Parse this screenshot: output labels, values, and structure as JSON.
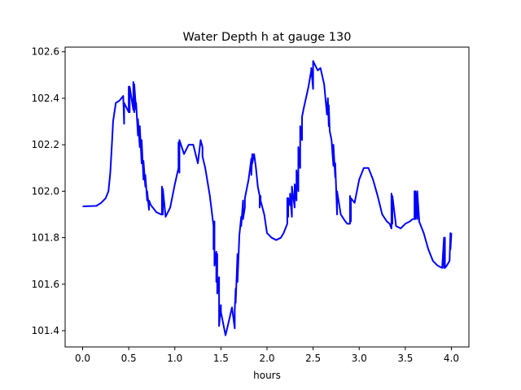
{
  "chart_data": {
    "type": "line",
    "title": "Water Depth h at gauge 130",
    "xlabel": "hours",
    "ylabel": "",
    "xlim": [
      -0.19,
      4.19
    ],
    "ylim": [
      101.33,
      102.62
    ],
    "xticks": [
      0.0,
      0.5,
      1.0,
      1.5,
      2.0,
      2.5,
      3.0,
      3.5,
      4.0
    ],
    "xtick_labels": [
      "0.0",
      "0.5",
      "1.0",
      "1.5",
      "2.0",
      "2.5",
      "3.0",
      "3.5",
      "4.0"
    ],
    "yticks": [
      101.4,
      101.6,
      101.8,
      102.0,
      102.2,
      102.4,
      102.6
    ],
    "ytick_labels": [
      "101.4",
      "101.6",
      "101.8",
      "102.0",
      "102.2",
      "102.4",
      "102.6"
    ],
    "grid": false,
    "series": [
      {
        "color": "#0000ff",
        "x": [
          0.0,
          0.15,
          0.2,
          0.25,
          0.28,
          0.3,
          0.32,
          0.33,
          0.36,
          0.4,
          0.44,
          0.45,
          0.45,
          0.5,
          0.5,
          0.51,
          0.51,
          0.55,
          0.55,
          0.56,
          0.56,
          0.58,
          0.58,
          0.6,
          0.6,
          0.62,
          0.62,
          0.64,
          0.64,
          0.66,
          0.66,
          0.68,
          0.68,
          0.7,
          0.7,
          0.72,
          0.72,
          0.74,
          0.8,
          0.85,
          0.86,
          0.86,
          0.87,
          0.87,
          0.9,
          0.95,
          1.0,
          1.04,
          1.04,
          1.05,
          1.05,
          1.1,
          1.15,
          1.2,
          1.25,
          1.28,
          1.3,
          1.3,
          1.33,
          1.38,
          1.42,
          1.42,
          1.43,
          1.43,
          1.45,
          1.45,
          1.46,
          1.46,
          1.48,
          1.48,
          1.5,
          1.5,
          1.55,
          1.58,
          1.62,
          1.65,
          1.65,
          1.66,
          1.66,
          1.68,
          1.68,
          1.7,
          1.72,
          1.72,
          1.74,
          1.74,
          1.76,
          1.76,
          1.8,
          1.83,
          1.83,
          1.84,
          1.84,
          1.86,
          1.88,
          1.9,
          1.92,
          1.92,
          1.93,
          1.93,
          1.97,
          2.0,
          2.05,
          2.1,
          2.15,
          2.18,
          2.22,
          2.22,
          2.23,
          2.23,
          2.25,
          2.25,
          2.27,
          2.27,
          2.3,
          2.3,
          2.32,
          2.32,
          2.34,
          2.34,
          2.36,
          2.36,
          2.38,
          2.38,
          2.4,
          2.45,
          2.48,
          2.48,
          2.5,
          2.5,
          2.55,
          2.58,
          2.62,
          2.65,
          2.66,
          2.67,
          2.67,
          2.68,
          2.7,
          2.7,
          2.72,
          2.72,
          2.74,
          2.74,
          2.76,
          2.76,
          2.8,
          2.85,
          2.87,
          2.9,
          2.9,
          2.91,
          2.91,
          2.95,
          3.0,
          3.05,
          3.1,
          3.15,
          3.2,
          3.25,
          3.3,
          3.33,
          3.35,
          3.35,
          3.36,
          3.36,
          3.4,
          3.45,
          3.5,
          3.55,
          3.58,
          3.6,
          3.6,
          3.61,
          3.61,
          3.63,
          3.63,
          3.65,
          3.65,
          3.7,
          3.75,
          3.8,
          3.85,
          3.9,
          3.92,
          3.92,
          3.93,
          3.93,
          3.95,
          3.98,
          3.99,
          3.99,
          4.0
        ],
        "y": [
          101.935,
          101.937,
          101.95,
          101.97,
          102.0,
          102.08,
          102.22,
          102.3,
          102.38,
          102.39,
          102.41,
          102.29,
          102.38,
          102.34,
          102.45,
          102.34,
          102.45,
          102.35,
          102.47,
          102.34,
          102.46,
          102.35,
          102.38,
          102.24,
          102.31,
          102.19,
          102.28,
          102.12,
          102.22,
          102.05,
          102.13,
          102.02,
          102.07,
          101.96,
          102.0,
          101.92,
          101.96,
          101.94,
          101.91,
          101.9,
          101.9,
          102.02,
          101.9,
          102.01,
          101.89,
          101.93,
          102.03,
          102.1,
          102.21,
          102.08,
          102.22,
          102.16,
          102.2,
          102.2,
          102.12,
          102.22,
          102.19,
          102.15,
          102.1,
          101.98,
          101.85,
          101.75,
          101.87,
          101.68,
          101.74,
          101.61,
          101.73,
          101.56,
          101.63,
          101.42,
          101.51,
          101.48,
          101.38,
          101.43,
          101.5,
          101.41,
          101.49,
          101.58,
          101.52,
          101.73,
          101.61,
          101.81,
          101.89,
          101.85,
          101.96,
          101.88,
          101.93,
          101.97,
          102.05,
          102.14,
          102.07,
          102.16,
          102.12,
          102.16,
          102.1,
          102.02,
          101.98,
          101.93,
          101.98,
          101.96,
          101.9,
          101.82,
          101.8,
          101.79,
          101.8,
          101.82,
          101.86,
          101.97,
          101.89,
          101.97,
          101.94,
          101.99,
          101.89,
          102.02,
          101.93,
          102.03,
          101.96,
          102.09,
          102.0,
          102.19,
          102.1,
          102.28,
          102.22,
          102.32,
          102.36,
          102.45,
          102.52,
          102.53,
          102.44,
          102.56,
          102.52,
          102.53,
          102.46,
          102.33,
          102.4,
          102.28,
          102.37,
          102.26,
          102.22,
          102.22,
          102.11,
          102.2,
          102.06,
          102.12,
          101.9,
          102.0,
          101.9,
          101.87,
          101.86,
          101.86,
          101.98,
          101.87,
          101.97,
          101.95,
          102.05,
          102.1,
          102.1,
          102.05,
          101.98,
          101.9,
          101.87,
          101.86,
          101.84,
          101.99,
          101.86,
          101.98,
          101.85,
          101.84,
          101.86,
          101.87,
          101.88,
          101.88,
          102.0,
          101.88,
          102.0,
          101.88,
          102.0,
          101.88,
          101.87,
          101.82,
          101.75,
          101.7,
          101.68,
          101.67,
          101.8,
          101.67,
          101.8,
          101.67,
          101.68,
          101.7,
          101.82,
          101.75,
          101.82
        ]
      }
    ]
  }
}
